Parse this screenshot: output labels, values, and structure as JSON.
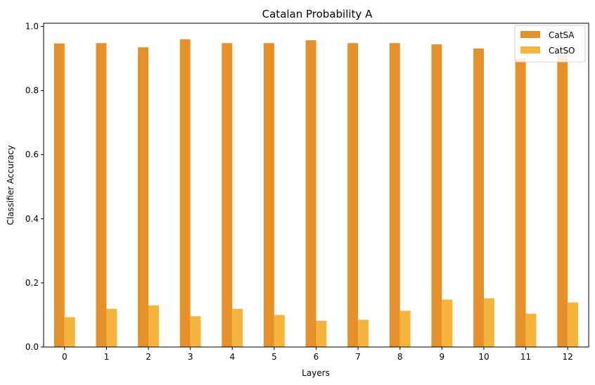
{
  "chart_data": {
    "type": "bar",
    "title": "Catalan Probability A",
    "xlabel": "Layers",
    "ylabel": "Classifier Accuracy",
    "categories": [
      "0",
      "1",
      "2",
      "3",
      "4",
      "5",
      "6",
      "7",
      "8",
      "9",
      "10",
      "11",
      "12"
    ],
    "series": [
      {
        "name": "CatSA",
        "color": "#e59028",
        "values": [
          0.947,
          0.948,
          0.935,
          0.96,
          0.948,
          0.948,
          0.957,
          0.948,
          0.948,
          0.944,
          0.931,
          0.9,
          0.91
        ]
      },
      {
        "name": "CatSO",
        "color": "#f5b53d",
        "values": [
          0.093,
          0.119,
          0.13,
          0.096,
          0.119,
          0.1,
          0.082,
          0.085,
          0.113,
          0.148,
          0.152,
          0.104,
          0.139
        ]
      }
    ],
    "ylim": [
      0,
      1.01
    ],
    "yticks": [
      "0.0",
      "0.2",
      "0.4",
      "0.6",
      "0.8",
      "1.0"
    ],
    "grid": false,
    "legend_position": "top-right"
  }
}
